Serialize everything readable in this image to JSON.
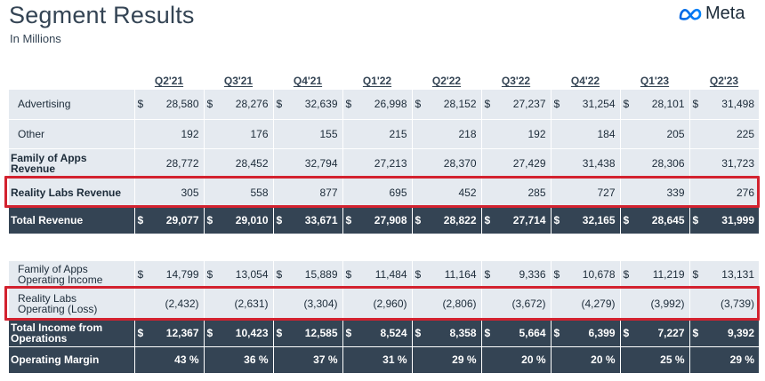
{
  "header": {
    "title": "Segment Results",
    "subtitle": "In Millions",
    "logo_text": "Meta"
  },
  "columns": [
    "Q2'21",
    "Q3'21",
    "Q4'21",
    "Q1'22",
    "Q2'22",
    "Q3'22",
    "Q4'22",
    "Q1'23",
    "Q2'23"
  ],
  "revenue_table": [
    {
      "label": "Advertising",
      "currency": true,
      "values": [
        "28,580",
        "28,276",
        "32,639",
        "26,998",
        "28,152",
        "27,237",
        "31,254",
        "28,101",
        "31,498"
      ]
    },
    {
      "label": "Other",
      "currency": false,
      "values": [
        "192",
        "176",
        "155",
        "215",
        "218",
        "192",
        "184",
        "205",
        "225"
      ]
    },
    {
      "label": "Family of Apps Revenue",
      "currency": false,
      "values": [
        "28,772",
        "28,452",
        "32,794",
        "27,213",
        "28,370",
        "27,429",
        "31,438",
        "28,306",
        "31,723"
      ]
    },
    {
      "label": "Reality Labs Revenue",
      "currency": false,
      "values": [
        "305",
        "558",
        "877",
        "695",
        "452",
        "285",
        "727",
        "339",
        "276"
      ]
    },
    {
      "label": "Total Revenue",
      "currency": true,
      "values": [
        "29,077",
        "29,010",
        "33,671",
        "27,908",
        "28,822",
        "27,714",
        "32,165",
        "28,645",
        "31,999"
      ]
    }
  ],
  "income_table": [
    {
      "label": "Family of Apps Operating Income",
      "currency": true,
      "values": [
        "14,799",
        "13,054",
        "15,889",
        "11,484",
        "11,164",
        "9,336",
        "10,678",
        "11,219",
        "13,131"
      ]
    },
    {
      "label": "Reality Labs Operating (Loss)",
      "currency": false,
      "values": [
        "(2,432)",
        "(2,631)",
        "(3,304)",
        "(2,960)",
        "(2,806)",
        "(3,672)",
        "(4,279)",
        "(3,992)",
        "(3,739)"
      ]
    },
    {
      "label": "Total Income from Operations",
      "currency": true,
      "values": [
        "12,367",
        "10,423",
        "12,585",
        "8,524",
        "8,358",
        "5,664",
        "6,399",
        "7,227",
        "9,392"
      ]
    },
    {
      "label": "Operating Margin",
      "currency": false,
      "values": [
        "43 %",
        "36 %",
        "37 %",
        "31 %",
        "29 %",
        "20 %",
        "20 %",
        "25 %",
        "29 %"
      ]
    }
  ],
  "currency_symbol": "$",
  "colors": {
    "dark_row": "#344454",
    "light_row": "#e5eaf0",
    "highlight": "#d3222f",
    "logo_gradient_start": "#0064e1",
    "logo_gradient_end": "#0082fb"
  },
  "icons": {
    "logo": "meta-infinity-logo-icon"
  }
}
